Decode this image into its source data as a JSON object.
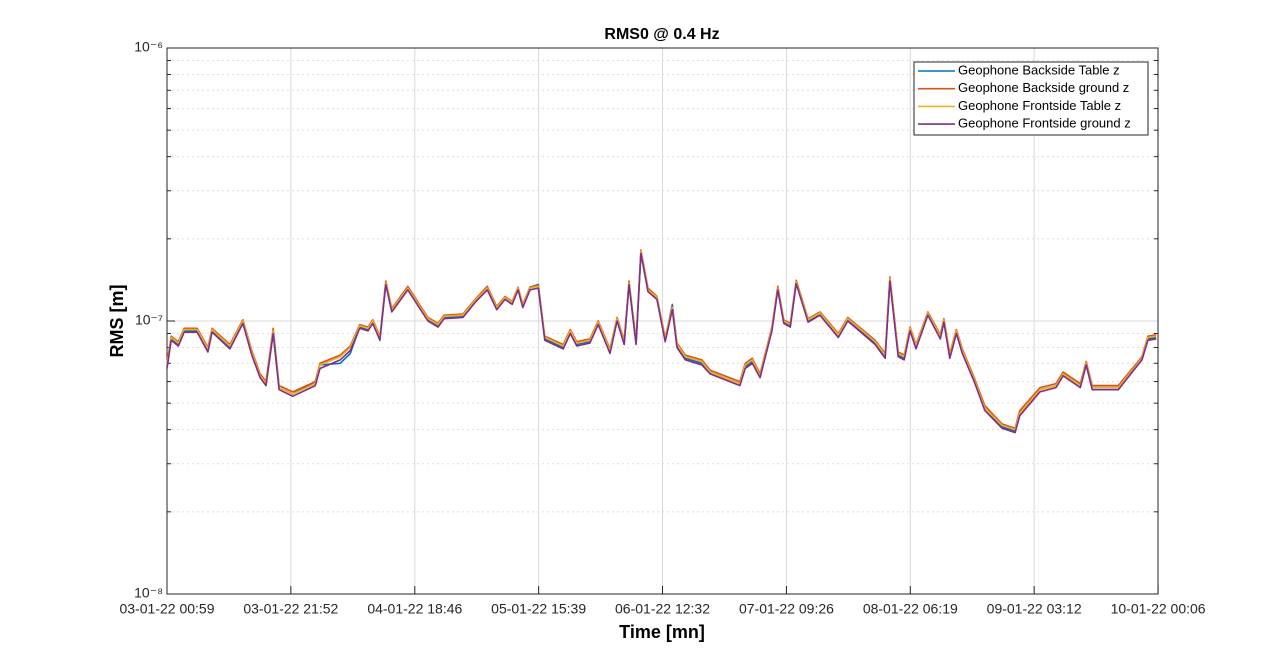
{
  "chart_data": {
    "type": "line",
    "title": "RMS0 @ 0.4 Hz",
    "x_label": "Time [mn]",
    "y_label": "RMS [m]",
    "x": [
      0,
      0.7,
      1.9,
      2.9,
      5.1,
      6.9,
      7.6,
      10.6,
      12.8,
      14.3,
      15.7,
      16.7,
      17.9,
      18.9,
      21.2,
      25.0,
      25.8,
      29.2,
      30.9,
      32.5,
      33.9,
      34.7,
      35.9,
      36.9,
      37.9,
      40.6,
      44.0,
      45.7,
      46.7,
      49.9,
      52.1,
      54.0,
      55.6,
      57.0,
      58.2,
      59.2,
      60.0,
      61.2,
      62.6,
      63.7,
      66.8,
      68.0,
      69.1,
      71.3,
      72.7,
      74.7,
      75.9,
      77.1,
      77.9,
      79.1,
      79.9,
      81.1,
      82.6,
      84.0,
      85.2,
      86.0,
      87.4,
      90.2,
      91.6,
      96.6,
      97.5,
      98.7,
      100.0,
      102.0,
      103.0,
      104.0,
      105.1,
      106.1,
      108.1,
      110.1,
      113.2,
      114.8,
      119.4,
      121.1,
      121.9,
      123.3,
      124.3,
      125.3,
      126.3,
      128.3,
      130.4,
      131.0,
      132.0,
      133.1,
      134.1,
      136.1,
      137.9,
      140.8,
      143.0,
      143.8,
      147.2,
      149.9,
      151.1,
      154.0,
      155.0,
      156.0,
      160.4,
      164.4,
      165.4,
      166.8
    ],
    "series": [
      {
        "name": "Geophone Backside Table z",
        "color": "#0072BD",
        "values": [
          6.8e-08,
          8.6e-08,
          8.2e-08,
          9.2e-08,
          9.2e-08,
          7.8e-08,
          9.2e-08,
          8e-08,
          9.9e-08,
          7.6e-08,
          6.3e-08,
          5.9e-08,
          9.1e-08,
          5.7e-08,
          5.4e-08,
          6e-08,
          6.9e-08,
          7e-08,
          7.6e-08,
          9.5e-08,
          9.3e-08,
          9.9e-08,
          8.6e-08,
          1.37e-07,
          1.09e-07,
          1.31e-07,
          1.01e-07,
          9.6e-08,
          1.03e-07,
          1.04e-07,
          1.19e-07,
          1.31e-07,
          1.11e-07,
          1.21e-07,
          1.16e-07,
          1.31e-07,
          1.13e-07,
          1.33e-07,
          1.36e-07,
          8.6e-08,
          8e-08,
          9.1e-08,
          8.2e-08,
          8.4e-08,
          9.8e-08,
          7.7e-08,
          1.01e-07,
          8.3e-08,
          1.37e-07,
          8.3e-08,
          1.78e-07,
          1.29e-07,
          1.21e-07,
          8.5e-08,
          1.15e-07,
          8.1e-08,
          7.3e-08,
          7e-08,
          6.5e-08,
          5.9e-08,
          6.8e-08,
          7.1e-08,
          6.3e-08,
          9.3e-08,
          1.31e-07,
          9.9e-08,
          9.6e-08,
          1.38e-07,
          1e-07,
          1.06e-07,
          8.8e-08,
          1.01e-07,
          8.3e-08,
          7.4e-08,
          1.41e-07,
          7.5e-08,
          7.3e-08,
          9.3e-08,
          8e-08,
          1.06e-07,
          8.7e-08,
          1e-07,
          7.4e-08,
          9.1e-08,
          7.7e-08,
          6.1e-08,
          4.8e-08,
          4.1e-08,
          3.95e-08,
          4.6e-08,
          5.6e-08,
          5.8e-08,
          6.4e-08,
          5.8e-08,
          7e-08,
          5.7e-08,
          5.7e-08,
          7.3e-08,
          8.6e-08,
          8.7e-08
        ]
      },
      {
        "name": "Geophone Backside ground z",
        "color": "#D95319",
        "values": [
          7e-08,
          8.8e-08,
          8.4e-08,
          9.4e-08,
          9.4e-08,
          8e-08,
          9.4e-08,
          8.2e-08,
          1.01e-07,
          7.8e-08,
          6.4e-08,
          6e-08,
          9.4e-08,
          5.8e-08,
          5.5e-08,
          6e-08,
          7e-08,
          7.5e-08,
          8.1e-08,
          9.7e-08,
          9.5e-08,
          1.01e-07,
          8.8e-08,
          1.4e-07,
          1.11e-07,
          1.34e-07,
          1.03e-07,
          9.8e-08,
          1.05e-07,
          1.06e-07,
          1.21e-07,
          1.34e-07,
          1.13e-07,
          1.23e-07,
          1.18e-07,
          1.33e-07,
          1.15e-07,
          1.33e-07,
          1.35e-07,
          8.8e-08,
          8.2e-08,
          9.3e-08,
          8.4e-08,
          8.6e-08,
          1e-07,
          7.9e-08,
          1.03e-07,
          8.5e-08,
          1.4e-07,
          8.5e-08,
          1.82e-07,
          1.32e-07,
          1.23e-07,
          8.7e-08,
          1.13e-07,
          8.3e-08,
          7.5e-08,
          7.2e-08,
          6.6e-08,
          6e-08,
          7e-08,
          7.3e-08,
          6.4e-08,
          9.5e-08,
          1.34e-07,
          1.01e-07,
          9.8e-08,
          1.41e-07,
          1.02e-07,
          1.08e-07,
          9e-08,
          1.03e-07,
          8.5e-08,
          7.6e-08,
          1.45e-07,
          7.7e-08,
          7.5e-08,
          9.5e-08,
          8.2e-08,
          1.08e-07,
          8.9e-08,
          1.02e-07,
          7.6e-08,
          9.3e-08,
          7.9e-08,
          6.2e-08,
          4.9e-08,
          4.2e-08,
          4.05e-08,
          4.7e-08,
          5.7e-08,
          5.9e-08,
          6.5e-08,
          5.9e-08,
          7.1e-08,
          5.8e-08,
          5.8e-08,
          7.4e-08,
          8.8e-08,
          8.9e-08
        ]
      },
      {
        "name": "Geophone Frontside Table z",
        "color": "#EDB120",
        "values": [
          6.9e-08,
          8.7e-08,
          8.3e-08,
          9.3e-08,
          9.3e-08,
          7.9e-08,
          9.3e-08,
          8.1e-08,
          1e-07,
          7.7e-08,
          6.3e-08,
          5.9e-08,
          9.2e-08,
          5.7e-08,
          5.4e-08,
          5.9e-08,
          6.9e-08,
          7.4e-08,
          8e-08,
          9.6e-08,
          9.4e-08,
          1e-07,
          8.7e-08,
          1.38e-07,
          1.1e-07,
          1.32e-07,
          1.02e-07,
          9.7e-08,
          1.04e-07,
          1.05e-07,
          1.2e-07,
          1.32e-07,
          1.12e-07,
          1.22e-07,
          1.17e-07,
          1.32e-07,
          1.14e-07,
          1.32e-07,
          1.34e-07,
          8.7e-08,
          8.1e-08,
          9.2e-08,
          8.3e-08,
          8.5e-08,
          9.9e-08,
          7.8e-08,
          1.02e-07,
          8.4e-08,
          1.38e-07,
          8.4e-08,
          1.8e-07,
          1.3e-07,
          1.22e-07,
          8.6e-08,
          1.12e-07,
          8.2e-08,
          7.4e-08,
          7.1e-08,
          6.5e-08,
          5.9e-08,
          6.9e-08,
          7.2e-08,
          6.3e-08,
          9.4e-08,
          1.32e-07,
          1e-07,
          9.7e-08,
          1.39e-07,
          1.01e-07,
          1.07e-07,
          8.9e-08,
          1.02e-07,
          8.4e-08,
          7.5e-08,
          1.43e-07,
          7.6e-08,
          7.4e-08,
          9.4e-08,
          8.1e-08,
          1.07e-07,
          8.8e-08,
          1.01e-07,
          7.5e-08,
          9.2e-08,
          7.8e-08,
          6.1e-08,
          4.8e-08,
          4.15e-08,
          4e-08,
          4.6e-08,
          5.6e-08,
          5.8e-08,
          6.4e-08,
          5.8e-08,
          7e-08,
          5.7e-08,
          5.7e-08,
          7.3e-08,
          8.7e-08,
          8.8e-08
        ]
      },
      {
        "name": "Geophone Frontside ground z",
        "color": "#7E2F8E",
        "values": [
          6.7e-08,
          8.5e-08,
          8.1e-08,
          9.1e-08,
          9.1e-08,
          7.7e-08,
          9.1e-08,
          7.9e-08,
          9.8e-08,
          7.5e-08,
          6.2e-08,
          5.8e-08,
          9e-08,
          5.6e-08,
          5.3e-08,
          5.8e-08,
          6.7e-08,
          7.2e-08,
          7.8e-08,
          9.4e-08,
          9.2e-08,
          9.8e-08,
          8.5e-08,
          1.36e-07,
          1.08e-07,
          1.3e-07,
          1e-07,
          9.5e-08,
          1.02e-07,
          1.03e-07,
          1.18e-07,
          1.3e-07,
          1.1e-07,
          1.2e-07,
          1.15e-07,
          1.3e-07,
          1.12e-07,
          1.3e-07,
          1.32e-07,
          8.5e-08,
          7.9e-08,
          9e-08,
          8.1e-08,
          8.3e-08,
          9.7e-08,
          7.6e-08,
          1e-07,
          8.2e-08,
          1.36e-07,
          8.2e-08,
          1.77e-07,
          1.28e-07,
          1.2e-07,
          8.4e-08,
          1.1e-07,
          8e-08,
          7.2e-08,
          6.9e-08,
          6.4e-08,
          5.8e-08,
          6.7e-08,
          7e-08,
          6.2e-08,
          9.2e-08,
          1.3e-07,
          9.8e-08,
          9.5e-08,
          1.37e-07,
          9.9e-08,
          1.05e-07,
          8.7e-08,
          1e-07,
          8.2e-08,
          7.3e-08,
          1.4e-07,
          7.4e-08,
          7.2e-08,
          9.2e-08,
          7.9e-08,
          1.05e-07,
          8.6e-08,
          9.9e-08,
          7.3e-08,
          9e-08,
          7.6e-08,
          6e-08,
          4.7e-08,
          4.05e-08,
          3.9e-08,
          4.5e-08,
          5.5e-08,
          5.7e-08,
          6.3e-08,
          5.7e-08,
          6.9e-08,
          5.6e-08,
          5.6e-08,
          7.2e-08,
          8.5e-08,
          8.6e-08
        ]
      }
    ],
    "xlim": [
      0,
      167.1
    ],
    "xticks": [
      {
        "value": 0,
        "label": "03-01-22 00:59"
      },
      {
        "value": 20.883,
        "label": "03-01-22 21:52"
      },
      {
        "value": 41.783,
        "label": "04-01-22 18:46"
      },
      {
        "value": 62.667,
        "label": "05-01-22 15:39"
      },
      {
        "value": 83.55,
        "label": "06-01-22 12:32"
      },
      {
        "value": 104.45,
        "label": "07-01-22 09:26"
      },
      {
        "value": 125.333,
        "label": "08-01-22 06:19"
      },
      {
        "value": 146.217,
        "label": "09-01-22 03:12"
      },
      {
        "value": 167.117,
        "label": "10-01-22 00:06"
      }
    ],
    "ylim": [
      1e-08,
      1e-06
    ],
    "yticks": [
      {
        "value": 1e-08,
        "label": "10⁻⁸"
      },
      {
        "value": 1e-07,
        "label": "10⁻⁷"
      },
      {
        "value": 1e-06,
        "label": "10⁻⁶"
      }
    ],
    "y_scale": "log",
    "grid": true,
    "minor_grid": true,
    "legend": "northeast"
  }
}
